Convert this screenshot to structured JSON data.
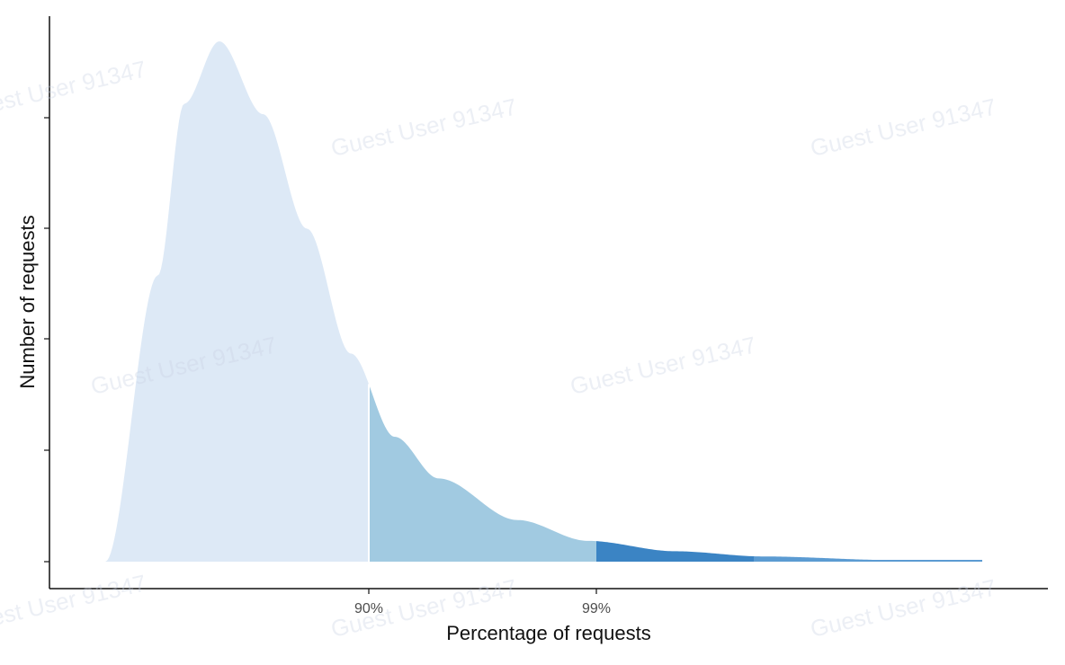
{
  "chart_data": {
    "type": "area",
    "title": "",
    "xlabel": "Percentage of requests",
    "ylabel": "Number of requests",
    "x_ticks": [
      {
        "label": "90%"
      },
      {
        "label": "99%"
      }
    ],
    "y_tick_labels": "none",
    "grid": false,
    "legend": "none",
    "regions": [
      {
        "range": "0-90%",
        "color": "#dde9f6"
      },
      {
        "range": "90-99%",
        "color": "#a1cae1"
      },
      {
        "range": "99-99.9%",
        "color": "#3b84c4"
      },
      {
        "range": "99.9-100%",
        "color": "#5b9bd2"
      }
    ],
    "distribution": {
      "shape": "right-skewed (lognormal-like)",
      "relative_counts_at_bins": [
        [
          0.0,
          0.0
        ],
        [
          0.06,
          0.55
        ],
        [
          0.09,
          0.88
        ],
        [
          0.13,
          1.0
        ],
        [
          0.18,
          0.86
        ],
        [
          0.23,
          0.64
        ],
        [
          0.28,
          0.4
        ],
        [
          0.33,
          0.24
        ],
        [
          0.38,
          0.16
        ],
        [
          0.47,
          0.08
        ],
        [
          0.55,
          0.04
        ],
        [
          0.65,
          0.02
        ],
        [
          0.75,
          0.01
        ],
        [
          0.9,
          0.003
        ],
        [
          1.0,
          0.002
        ]
      ]
    }
  },
  "watermark": {
    "text": "Guest User 91347"
  }
}
